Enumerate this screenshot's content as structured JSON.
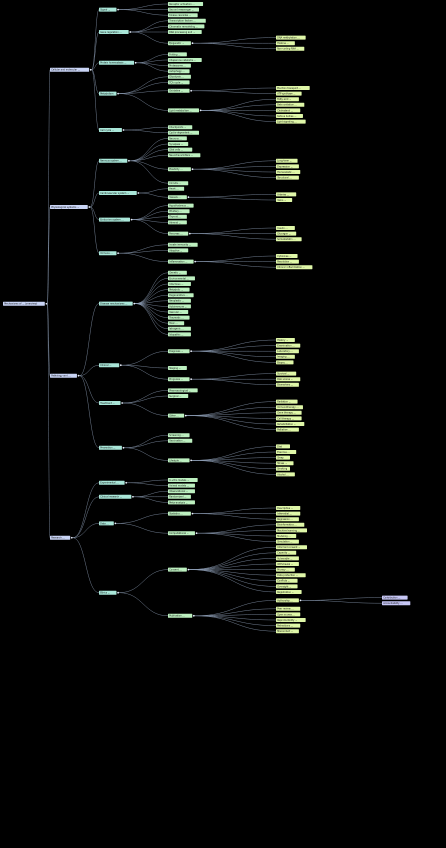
{
  "root": {
    "label": "Mechanisms of ... (overview)",
    "color": "#c9d4f5"
  },
  "colors": {
    "level1": "#c9d4f5",
    "level2": "#a9e6d8",
    "level3": "#bdf0c0",
    "level4": "#dff7a8",
    "level5": "#c6c6f5",
    "edge": "#8fa0b8",
    "background": "#000000"
  },
  "branches": [
    {
      "label": "Cellular and molecular ...",
      "children": [
        {
          "label": "Signal ...",
          "children": [
            {
              "label": "Receptor activation ..."
            },
            {
              "label": "Second messenger ..."
            },
            {
              "label": "Kinase cascades ..."
            }
          ]
        },
        {
          "label": "Gene regulation ...",
          "children": [
            {
              "label": "Transcription factors ..."
            },
            {
              "label": "Chromatin remodeling ..."
            },
            {
              "label": "RNA processing and ..."
            },
            {
              "label": "Epigenetic ...",
              "children": [
                {
                  "label": "DNA methylation ..."
                },
                {
                  "label": "Histone ..."
                },
                {
                  "label": "Non-coding RNA ..."
                }
              ]
            }
          ]
        },
        {
          "label": "Protein homeostasis ...",
          "children": [
            {
              "label": "Folding ..."
            },
            {
              "label": "Chaperone networks ..."
            },
            {
              "label": "Proteasome ..."
            },
            {
              "label": "Autophagy ..."
            }
          ]
        },
        {
          "label": "Metabolism",
          "children": [
            {
              "label": "Glycolysis ..."
            },
            {
              "label": "TCA cycle ..."
            },
            {
              "label": "Oxidative ...",
              "children": [
                {
                  "label": "Electron transport ..."
                },
                {
                  "label": "ATP synthase ..."
                }
              ]
            },
            {
              "label": "Lipid metabolism ...",
              "children": [
                {
                  "label": "Fatty acid ..."
                },
                {
                  "label": "Beta oxidation ..."
                },
                {
                  "label": "Cholesterol ..."
                },
                {
                  "label": "Ketone bodies ..."
                },
                {
                  "label": "Lipid signaling ..."
                }
              ]
            }
          ]
        },
        {
          "label": "Cell cycle ...",
          "children": [
            {
              "label": "Checkpoints ..."
            },
            {
              "label": "Cyclin-dependent ..."
            }
          ]
        }
      ]
    },
    {
      "label": "Physiological systems ...",
      "children": [
        {
          "label": "Nervous system ...",
          "children": [
            {
              "label": "Neurons ..."
            },
            {
              "label": "Synapses ..."
            },
            {
              "label": "Glial cells ..."
            },
            {
              "label": "Neurotransmitters ..."
            },
            {
              "label": "Plasticity ...",
              "children": [
                {
                  "label": "Long-term ..."
                },
                {
                  "label": "Depression ..."
                },
                {
                  "label": "Homeostatic ..."
                },
                {
                  "label": "Structural ..."
                }
              ]
            },
            {
              "label": "Circuits ..."
            }
          ]
        },
        {
          "label": "Cardiovascular system ...",
          "children": [
            {
              "label": "Heart ..."
            },
            {
              "label": "Vessels ...",
              "children": [
                {
                  "label": "Arteries ..."
                },
                {
                  "label": "Veins ..."
                }
              ]
            }
          ]
        },
        {
          "label": "Endocrine system ...",
          "children": [
            {
              "label": "Hypothalamus ..."
            },
            {
              "label": "Pituitary ..."
            },
            {
              "label": "Thyroid ..."
            },
            {
              "label": "Adrenal ..."
            },
            {
              "label": "Pancreas ...",
              "children": [
                {
                  "label": "Insulin ..."
                },
                {
                  "label": "Glucagon ..."
                },
                {
                  "label": "Somatostatin ..."
                }
              ]
            }
          ]
        },
        {
          "label": "Immune ...",
          "children": [
            {
              "label": "Innate immunity ..."
            },
            {
              "label": "Adaptive ..."
            },
            {
              "label": "Inflammation ...",
              "children": [
                {
                  "label": "Cytokines ..."
                },
                {
                  "label": "Resolution ..."
                },
                {
                  "label": "Chronic inflammation ..."
                }
              ]
            }
          ]
        }
      ]
    },
    {
      "label": "Pathology and ...",
      "children": [
        {
          "label": "Disease mechanisms ...",
          "children": [
            {
              "label": "Genetic ..."
            },
            {
              "label": "Environmental ..."
            },
            {
              "label": "Infectious ..."
            },
            {
              "label": "Metabolic ..."
            },
            {
              "label": "Degenerative ..."
            },
            {
              "label": "Neoplastic ..."
            },
            {
              "label": "Autoimmune ..."
            },
            {
              "label": "Vascular ..."
            },
            {
              "label": "Traumatic ..."
            },
            {
              "label": "Toxic ..."
            },
            {
              "label": "Iatrogenic ..."
            },
            {
              "label": "Idiopathic ..."
            }
          ]
        },
        {
          "label": "Clinical ...",
          "children": [
            {
              "label": "Diagnosis ...",
              "children": [
                {
                  "label": "History ..."
                },
                {
                  "label": "Examination ..."
                },
                {
                  "label": "Laboratory ..."
                },
                {
                  "label": "Imaging ..."
                },
                {
                  "label": "Biopsy ..."
                }
              ]
            },
            {
              "label": "Staging ..."
            },
            {
              "label": "Prognosis ...",
              "children": [
                {
                  "label": "Survival ..."
                },
                {
                  "label": "Risk scores ..."
                },
                {
                  "label": "Biomarkers ..."
                }
              ]
            }
          ]
        },
        {
          "label": "Treatment ...",
          "children": [
            {
              "label": "Pharmacological ..."
            },
            {
              "label": "Surgical ..."
            },
            {
              "label": "Other ...",
              "children": [
                {
                  "label": "Radiation ..."
                },
                {
                  "label": "Immunotherapy ..."
                },
                {
                  "label": "Gene therapy ..."
                },
                {
                  "label": "Cell therapy ..."
                },
                {
                  "label": "Rehabilitation ..."
                },
                {
                  "label": "Palliative ..."
                }
              ]
            }
          ]
        },
        {
          "label": "Prevention ...",
          "children": [
            {
              "label": "Screening ..."
            },
            {
              "label": "Vaccination ..."
            },
            {
              "label": "Lifestyle ...",
              "children": [
                {
                  "label": "Diet"
                },
                {
                  "label": "Exercise ..."
                },
                {
                  "label": "Sleep"
                },
                {
                  "label": "Stress ..."
                },
                {
                  "label": "Smoking"
                },
                {
                  "label": "Alcohol ..."
                }
              ]
            }
          ]
        }
      ]
    },
    {
      "label": "Research ...",
      "children": [
        {
          "label": "Experimental ...",
          "children": [
            {
              "label": "In vitro models ..."
            },
            {
              "label": "Animal models ..."
            }
          ]
        },
        {
          "label": "Clinical research ...",
          "children": [
            {
              "label": "Observational ..."
            },
            {
              "label": "Randomized ..."
            },
            {
              "label": "Meta-analysis ..."
            }
          ]
        },
        {
          "label": "Data ...",
          "children": [
            {
              "label": "Statistics ...",
              "children": [
                {
                  "label": "Descriptive ..."
                },
                {
                  "label": "Inferential ..."
                },
                {
                  "label": "Regression ..."
                }
              ]
            },
            {
              "label": "Computational ...",
              "children": [
                {
                  "label": "Bioinformatics ..."
                },
                {
                  "label": "Machine learning ..."
                },
                {
                  "label": "Modeling ..."
                },
                {
                  "label": "Simulation ..."
                }
              ]
            }
          ]
        },
        {
          "label": "Ethics ...",
          "children": [
            {
              "label": "Consent ...",
              "children": [
                {
                  "label": "Informed consent ..."
                },
                {
                  "label": "Capacity ..."
                },
                {
                  "label": "Vulnerable ..."
                },
                {
                  "label": "Withdrawal ..."
                },
                {
                  "label": "Privacy ..."
                },
                {
                  "label": "Data protection ..."
                },
                {
                  "label": "Conflicts ..."
                },
                {
                  "label": "Oversight ..."
                },
                {
                  "label": "Registration ..."
                }
              ]
            },
            {
              "label": "Publication ...",
              "children": [
                {
                  "label": "Authorship ...",
                  "children": [
                    {
                      "label": "Contribution ..."
                    },
                    {
                      "label": "Accountability ..."
                    }
                  ]
                },
                {
                  "label": "Peer review ..."
                },
                {
                  "label": "Open access ..."
                },
                {
                  "label": "Reproducibility ..."
                },
                {
                  "label": "Retractions ..."
                },
                {
                  "label": "Misconduct ..."
                }
              ]
            }
          ]
        }
      ]
    }
  ]
}
